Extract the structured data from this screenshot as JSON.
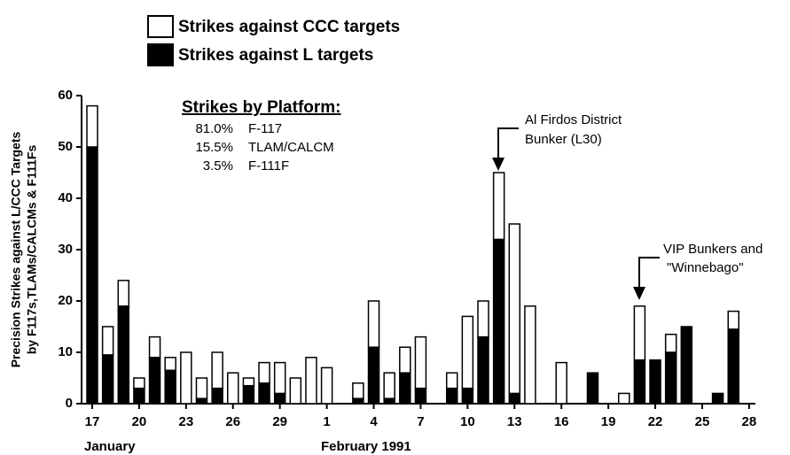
{
  "chart_data": {
    "type": "bar",
    "stacked": true,
    "y_label": [
      "Precision Strikes against L/CCC Targets",
      "by F117s,TLAMs/CALCMs & F111Fs"
    ],
    "categories": [
      "17",
      null,
      null,
      "20",
      null,
      null,
      "23",
      null,
      null,
      "26",
      null,
      null,
      "29",
      null,
      null,
      "1",
      null,
      null,
      "4",
      null,
      null,
      "7",
      null,
      null,
      "10",
      null,
      null,
      "13",
      null,
      null,
      "16",
      null,
      null,
      "19",
      null,
      null,
      "22",
      null,
      null,
      "25",
      null,
      null,
      "28"
    ],
    "month_labels": [
      "January",
      "February 1991"
    ],
    "series": [
      {
        "name": "Strikes against L targets",
        "color": "#000000",
        "values": [
          50,
          9.5,
          19,
          3,
          9,
          6.5,
          0,
          1,
          3,
          0,
          3.5,
          4,
          2,
          0,
          0,
          0,
          0,
          1,
          11,
          1,
          6,
          3,
          0,
          3,
          3,
          13,
          32,
          2,
          0,
          0,
          0,
          0,
          6,
          0,
          0,
          8.5,
          8.5,
          10,
          15,
          0,
          2,
          14.5,
          0
        ]
      },
      {
        "name": "Strikes against CCC targets",
        "color": "#ffffff",
        "values": [
          8,
          5.5,
          5,
          2,
          4,
          2.5,
          10,
          4,
          7,
          6,
          1.5,
          4,
          6,
          5,
          9,
          7,
          0,
          3,
          9,
          5,
          5,
          10,
          0,
          3,
          14,
          7,
          13,
          33,
          19,
          0,
          8,
          0,
          0,
          0,
          2,
          10.5,
          0,
          3.5,
          0,
          0,
          0,
          3.5,
          0
        ]
      }
    ],
    "ylim": [
      0,
      60
    ],
    "yticks": [
      0,
      10,
      20,
      30,
      40,
      50,
      60
    ],
    "grid": false,
    "platform_table": {
      "title": "Strikes by Platform:",
      "rows": [
        [
          "81.0%",
          "F-117"
        ],
        [
          "15.5%",
          "TLAM/CALCM"
        ],
        [
          "3.5%",
          "F-111F"
        ]
      ]
    },
    "annotations": [
      {
        "lines": [
          "Al Firdos District",
          "Bunker (L30)"
        ]
      },
      {
        "lines": [
          "VIP Bunkers and",
          "\"Winnebago\""
        ]
      }
    ]
  }
}
